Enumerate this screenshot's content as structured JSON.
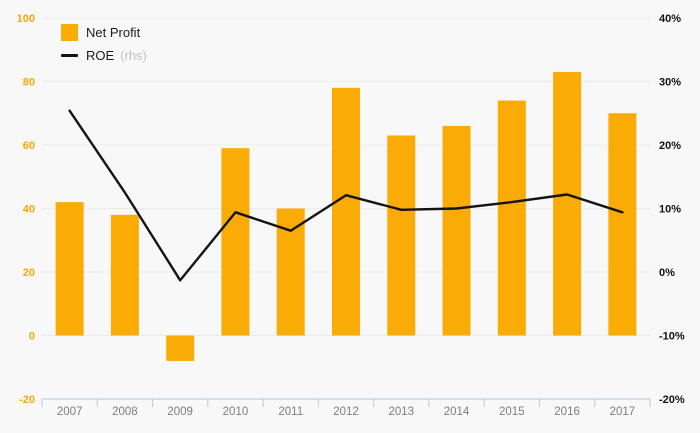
{
  "chart_data": {
    "type": "bar",
    "subtype": "bar-line-combo",
    "title": "",
    "categories": [
      "2007",
      "2008",
      "2009",
      "2010",
      "2011",
      "2012",
      "2013",
      "2014",
      "2015",
      "2016",
      "2017"
    ],
    "series": [
      {
        "name": "Net Profit",
        "type": "bar",
        "axis": "left",
        "values": [
          42,
          38,
          -8,
          59,
          40,
          78,
          63,
          66,
          74,
          83,
          70
        ]
      },
      {
        "name": "ROE",
        "suffix": "(rhs)",
        "type": "line",
        "axis": "right",
        "values": [
          25.4,
          12.5,
          -1.3,
          9.4,
          6.5,
          12.1,
          9.8,
          10.0,
          11.0,
          12.2,
          9.4
        ]
      }
    ],
    "left_axis": {
      "ticks": [
        "100",
        "80",
        "60",
        "40",
        "20",
        "0",
        "-20"
      ],
      "min": -20,
      "max": 100
    },
    "right_axis": {
      "ticks": [
        "40%",
        "30%",
        "20%",
        "10%",
        "0%",
        "-10%",
        "-20%"
      ],
      "min": -20,
      "max": 40
    },
    "legend_position": "top-left",
    "grid": "horizontal",
    "legend": [
      {
        "label": "Net Profit",
        "swatch": "square"
      },
      {
        "label": "ROE",
        "suffix": "(rhs)",
        "swatch": "line"
      }
    ]
  },
  "colors": {
    "bar": "#faab05",
    "left_axis_text": "#f5a800",
    "line": "#141414",
    "right_axis_text": "#111111",
    "x_axis_text": "#7e7e7e",
    "gridline": "#ebebeb",
    "axis_line": "#c6cce4",
    "background": "#f8f8f8",
    "rhs_note": "#c3c3c3"
  }
}
